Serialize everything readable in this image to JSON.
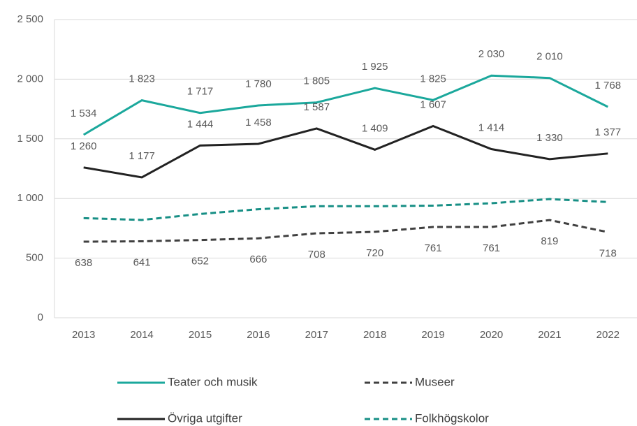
{
  "chart_data": {
    "type": "line",
    "categories": [
      "2013",
      "2014",
      "2015",
      "2016",
      "2017",
      "2018",
      "2019",
      "2020",
      "2021",
      "2022"
    ],
    "series": [
      {
        "name": "Teater och musik",
        "color": "#1ba89c",
        "dashed": false,
        "label_position": "above",
        "values": [
          1534,
          1823,
          1717,
          1780,
          1805,
          1925,
          1825,
          2030,
          2010,
          1768
        ],
        "value_labels": [
          "1 534",
          "1 823",
          "1 717",
          "1 780",
          "1 805",
          "1 925",
          "1 825",
          "2 030",
          "2 010",
          "1 768"
        ]
      },
      {
        "name": "Museer",
        "color": "#404040",
        "dashed": true,
        "label_position": "below",
        "values": [
          638,
          641,
          652,
          666,
          708,
          720,
          761,
          761,
          819,
          718
        ],
        "value_labels": [
          "638",
          "641",
          "652",
          "666",
          "708",
          "720",
          "761",
          "761",
          "819",
          "718"
        ]
      },
      {
        "name": "Övriga utgifter",
        "color": "#222222",
        "dashed": false,
        "label_position": "above",
        "values": [
          1260,
          1177,
          1444,
          1458,
          1587,
          1409,
          1607,
          1414,
          1330,
          1377
        ],
        "value_labels": [
          "1 260",
          "1 177",
          "1 444",
          "1 458",
          "1 587",
          "1 409",
          "1 607",
          "1 414",
          "1 330",
          "1 377"
        ]
      },
      {
        "name": "Folkhögskolor",
        "color": "#178f85",
        "dashed": true,
        "values": [
          835,
          820,
          870,
          910,
          935,
          935,
          940,
          960,
          995,
          970
        ]
      }
    ],
    "ylim": [
      0,
      2500
    ],
    "yticks": [
      0,
      500,
      {
        "value": 1000,
        "label": "1 000"
      },
      {
        "value": 1500,
        "label": "1 500"
      },
      {
        "value": 2000,
        "label": "2 000"
      },
      {
        "value": 2500,
        "label": "2 500"
      }
    ],
    "grid": true
  }
}
